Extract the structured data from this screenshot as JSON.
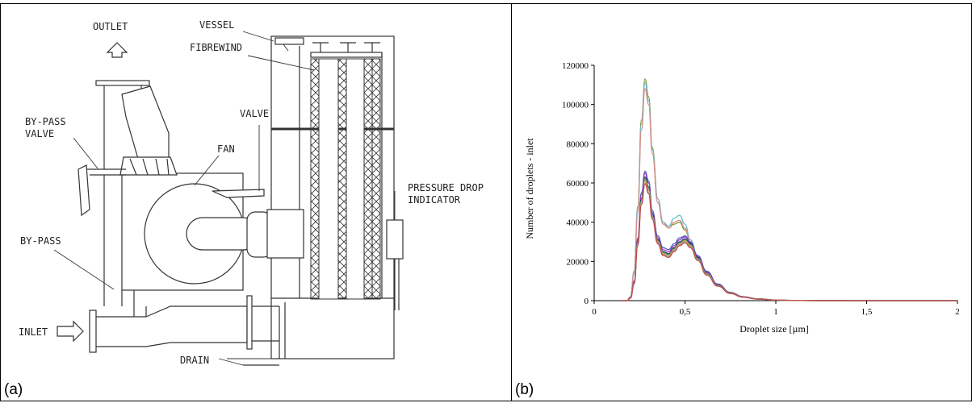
{
  "panel_a": {
    "letter": "(a)",
    "labels": {
      "outlet": "OUTLET",
      "vessel": "VESSEL",
      "fibrewind": "FIBREWIND",
      "bypass_valve_1": "BY-PASS",
      "bypass_valve_2": "VALVE",
      "valve": "VALVE",
      "fan": "FAN",
      "pressure_1": "PRESSURE DROP",
      "pressure_2": "INDICATOR",
      "bypass": "BY-PASS",
      "inlet": "INLET",
      "drain": "DRAIN"
    }
  },
  "panel_b": {
    "letter": "(b)"
  },
  "chart_data": {
    "type": "line",
    "title": "",
    "xlabel": "Droplet size [µm]",
    "ylabel": "Number of droplets - inlet",
    "xlim": [
      0,
      2
    ],
    "ylim": [
      0,
      120000
    ],
    "x_ticks": [
      "0",
      "0,5",
      "1",
      "1,5",
      "2"
    ],
    "y_ticks": [
      "0",
      "20000",
      "40000",
      "60000",
      "80000",
      "100000",
      "120000"
    ],
    "x": [
      0.15,
      0.18,
      0.2,
      0.22,
      0.24,
      0.26,
      0.28,
      0.3,
      0.32,
      0.35,
      0.38,
      0.41,
      0.44,
      0.47,
      0.5,
      0.53,
      0.57,
      0.62,
      0.68,
      0.75,
      0.82,
      0.9,
      1.0,
      1.1,
      1.2,
      1.4,
      1.6,
      2.0
    ],
    "series": [
      {
        "color": "#7a9e3a",
        "values": [
          0,
          0,
          2000,
          15000,
          48000,
          92000,
          113000,
          104000,
          78000,
          52000,
          40000,
          37000,
          39000,
          40000,
          36000,
          30000,
          22000,
          14000,
          8000,
          4000,
          2000,
          900,
          300,
          100,
          40,
          0,
          0,
          0
        ]
      },
      {
        "color": "#6bbfc9",
        "values": [
          0,
          0,
          2000,
          15000,
          47000,
          90000,
          111000,
          102000,
          77000,
          52000,
          40000,
          38000,
          42000,
          43500,
          39000,
          31000,
          22000,
          14000,
          8000,
          4000,
          2000,
          900,
          300,
          100,
          40,
          0,
          0,
          0
        ]
      },
      {
        "color": "#d98a8a",
        "values": [
          0,
          0,
          2000,
          14000,
          45000,
          87000,
          108000,
          100000,
          75000,
          50000,
          39000,
          37000,
          40000,
          41000,
          37000,
          30000,
          21000,
          13500,
          7800,
          4000,
          2000,
          900,
          300,
          100,
          40,
          0,
          0,
          0
        ]
      },
      {
        "color": "#4a64c4",
        "values": [
          0,
          0,
          1500,
          10000,
          32000,
          55000,
          66000,
          61000,
          46000,
          33000,
          27000,
          26000,
          29000,
          32000,
          33000,
          30000,
          23000,
          15000,
          8500,
          4200,
          2000,
          900,
          300,
          100,
          40,
          0,
          0,
          0
        ]
      },
      {
        "color": "#9c3ac4",
        "values": [
          0,
          0,
          1500,
          9500,
          31000,
          54000,
          65000,
          60000,
          45000,
          32000,
          26000,
          25000,
          28000,
          31000,
          32500,
          29500,
          22500,
          14500,
          8300,
          4100,
          2000,
          900,
          300,
          100,
          40,
          0,
          0,
          0
        ]
      },
      {
        "color": "#2f2f6f",
        "values": [
          0,
          0,
          1500,
          9000,
          30000,
          52000,
          63000,
          58000,
          44000,
          31000,
          25000,
          24000,
          27000,
          30000,
          31500,
          29000,
          22000,
          14000,
          8000,
          4000,
          1900,
          850,
          280,
          90,
          35,
          0,
          0,
          0
        ]
      },
      {
        "color": "#3a9a5a",
        "values": [
          0,
          0,
          1400,
          9000,
          29500,
          51000,
          62000,
          57000,
          43000,
          30500,
          24500,
          23500,
          26500,
          29500,
          31000,
          28500,
          21500,
          13800,
          7800,
          3900,
          1850,
          850,
          280,
          90,
          35,
          0,
          0,
          0
        ]
      },
      {
        "color": "#e0a040",
        "values": [
          0,
          0,
          1400,
          8800,
          29000,
          50000,
          61000,
          56000,
          42500,
          30000,
          24000,
          23000,
          26000,
          29000,
          30500,
          28000,
          21000,
          13500,
          7600,
          3800,
          1800,
          800,
          270,
          90,
          35,
          0,
          0,
          0
        ]
      },
      {
        "color": "#a0a0a0",
        "values": [
          0,
          0,
          1300,
          8500,
          28500,
          49500,
          60000,
          55000,
          42000,
          29500,
          23500,
          22500,
          25500,
          28500,
          30000,
          27500,
          20800,
          13300,
          7500,
          3700,
          1750,
          800,
          260,
          85,
          30,
          0,
          0,
          0
        ]
      },
      {
        "color": "#c04a4a",
        "values": [
          0,
          0,
          1300,
          8500,
          28000,
          49000,
          59500,
          54500,
          41500,
          29000,
          23000,
          22000,
          25000,
          28000,
          29500,
          27000,
          20500,
          13000,
          7400,
          3600,
          1700,
          780,
          250,
          80,
          30,
          0,
          0,
          0
        ]
      }
    ]
  }
}
